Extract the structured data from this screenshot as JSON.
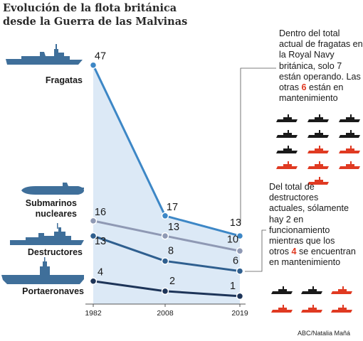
{
  "title": {
    "line1": "Evolución de la flota británica",
    "line2": "desde la Guerra de las Malvinas"
  },
  "chart_data": {
    "type": "line",
    "title": "Evolución de la flota británica desde la Guerra de las Malvinas",
    "x": [
      "1982",
      "2008",
      "2019"
    ],
    "ylim": [
      0,
      47
    ],
    "grid": false,
    "series": [
      {
        "name": "Fragatas",
        "values": [
          47,
          17,
          13
        ],
        "color": "#3d87c6"
      },
      {
        "name": "Submarinos nucleares",
        "values": [
          16,
          13,
          10
        ],
        "color": "#8f99b4"
      },
      {
        "name": "Destructores",
        "values": [
          13,
          8,
          6
        ],
        "color": "#2f5f8f"
      },
      {
        "name": "Portaeronaves",
        "values": [
          4,
          2,
          1
        ],
        "color": "#1d3458"
      }
    ],
    "annotations": [
      "Dentro del total actual de fragatas en la Royal Navy británica, solo 7 están operando. Las otras 6 están en mantenimiento",
      "Del total de destructores actuales, sólamente hay 2 en funcionamiento mientras que los otros 4 se encuentran en mantenimiento"
    ]
  },
  "labels": {
    "fragatas": "Fragatas",
    "submarinos_1": "Submarinos",
    "submarinos_2": "nucleares",
    "destructores": "Destructores",
    "portaeronaves": "Portaeronaves"
  },
  "notes": {
    "fragatas": {
      "before": "Dentro del total actual de fragatas en la Royal Navy británica, solo 7 están operando. Las otras ",
      "highlight": "6",
      "after": " están en mantenimiento"
    },
    "destructores": {
      "before": "Del total de destructores actuales, sólamente hay 2 en funcionamiento mientras que los otros ",
      "highlight": "4",
      "after": " se encuentran en mantenimiento"
    }
  },
  "icon_grids": {
    "fragatas": {
      "operating": 7,
      "maintenance": 6
    },
    "destructores": {
      "operating": 2,
      "maintenance": 4
    }
  },
  "colors": {
    "operating": "#1a1a1a",
    "maintenance": "#e03a22",
    "area_fill": "#dce9f6",
    "ship_fill": "#3f6f9a"
  },
  "credit": "ABC/Natalia Mañá"
}
